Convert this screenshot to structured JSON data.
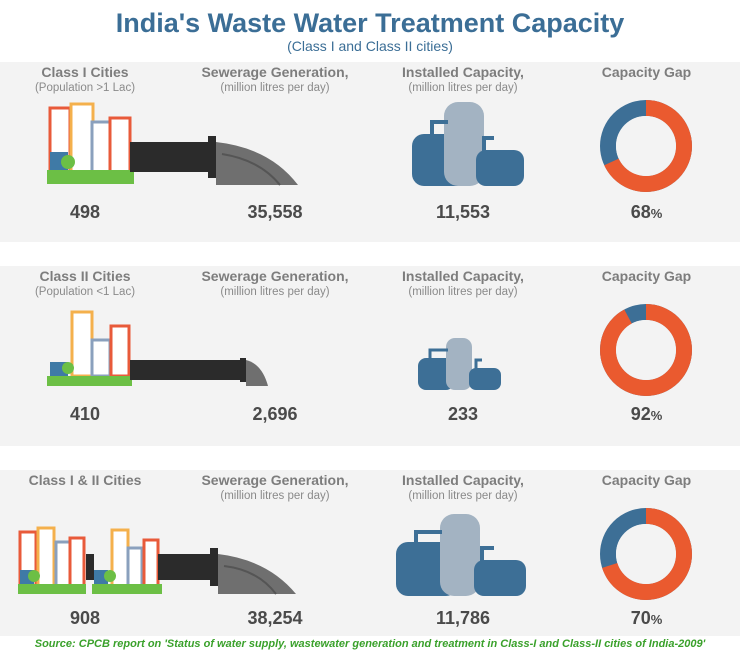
{
  "title": "India's Waste Water Treatment Capacity",
  "subtitle": "(Class I and Class II cities)",
  "headers": {
    "sewerage": "Sewerage Generation,",
    "installed": "Installed Capacity,",
    "unit": "(million litres per day)",
    "gap": "Capacity Gap"
  },
  "rows": [
    {
      "cities_label": "Class I Cities",
      "cities_sub": "(Population >1 Lac)"
    },
    {
      "cities_label": "Class II Cities",
      "cities_sub": "(Population <1 Lac)"
    },
    {
      "cities_label": "Class I & II Cities",
      "cities_sub": ""
    }
  ],
  "chart_data": {
    "type": "table",
    "title": "India's Waste Water Treatment Capacity",
    "subtitle": "(Class I and Class II cities)",
    "columns": [
      "Cities",
      "Sewerage Generation (million litres per day)",
      "Installed Capacity (million litres per day)",
      "Capacity Gap"
    ],
    "series": [
      {
        "name": "Class I Cities",
        "cities": "498",
        "sewerage": "35,558",
        "capacity": "11,553",
        "gap_value": "68",
        "gap_unit": "%",
        "gap_fraction": 0.68
      },
      {
        "name": "Class II Cities",
        "cities": "410",
        "sewerage": "2,696",
        "capacity": "233",
        "gap_value": "92",
        "gap_unit": "%",
        "gap_fraction": 0.92
      },
      {
        "name": "Class I & II Cities",
        "cities": "908",
        "sewerage": "38,254",
        "capacity": "11,786",
        "gap_value": "70",
        "gap_unit": "%",
        "gap_fraction": 0.7
      }
    ]
  },
  "colors": {
    "title": "#3b6e96",
    "gap_ring": "#ea5a2f",
    "installed_ring": "#3d6f96",
    "tank": "#3d6f96",
    "tower": "#a3b3c2",
    "pipe": "#2b2b2b",
    "grass": "#6cbf45",
    "source": "#3aa12b"
  },
  "source": "Source: CPCB report on 'Status of water supply, wastewater generation and treatment in Class-I and Class-II cities of India-2009'"
}
